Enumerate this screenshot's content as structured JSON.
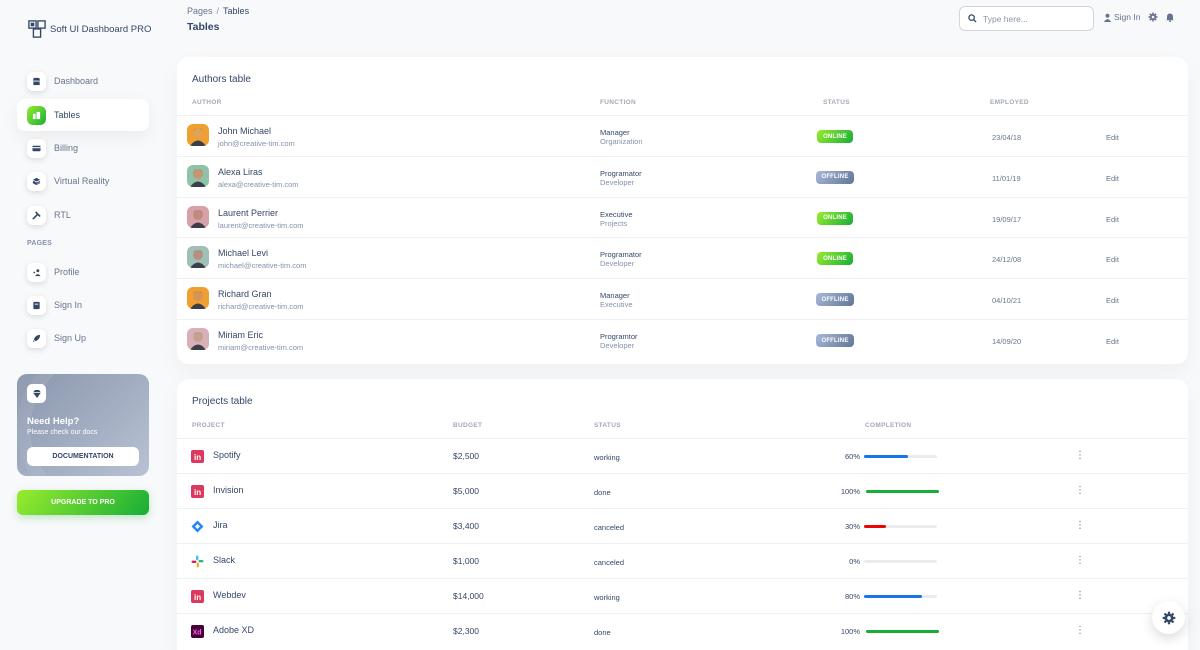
{
  "brand": {
    "name": "Soft UI Dashboard PRO"
  },
  "sidebar": {
    "items": [
      {
        "label": "Dashboard",
        "icon": "shop-icon"
      },
      {
        "label": "Tables",
        "icon": "office-icon"
      },
      {
        "label": "Billing",
        "icon": "credit-card-icon"
      },
      {
        "label": "Virtual Reality",
        "icon": "box-3d-icon"
      },
      {
        "label": "RTL",
        "icon": "settings-tools-icon"
      }
    ],
    "pages_label": "PAGES",
    "pages": [
      {
        "label": "Profile",
        "icon": "customer-support-icon"
      },
      {
        "label": "Sign In",
        "icon": "document-icon"
      },
      {
        "label": "Sign Up",
        "icon": "spaceship-icon"
      }
    ],
    "active_color": "#17ad37"
  },
  "help_card": {
    "title": "Need Help?",
    "subtitle": "Please check our docs",
    "button": "DOCUMENTATION"
  },
  "upgrade": {
    "label": "UPGRADE TO PRO"
  },
  "header": {
    "breadcrumb_root": "Pages",
    "breadcrumb_sep": "/",
    "breadcrumb_current": "Tables",
    "title": "Tables",
    "search_placeholder": "Type here...",
    "signin": "Sign In"
  },
  "authors": {
    "title": "Authors table",
    "headers": {
      "author": "AUTHOR",
      "function": "FUNCTION",
      "status": "STATUS",
      "employed": "EMPLOYED"
    },
    "rows": [
      {
        "name": "John Michael",
        "email": "john@creative-tim.com",
        "role": "Manager",
        "dept": "Organization",
        "status": "ONLINE",
        "employed": "23/04/18",
        "action": "Edit"
      },
      {
        "name": "Alexa Liras",
        "email": "alexa@creative-tim.com",
        "role": "Programator",
        "dept": "Developer",
        "status": "OFFLINE",
        "employed": "11/01/19",
        "action": "Edit"
      },
      {
        "name": "Laurent Perrier",
        "email": "laurent@creative-tim.com",
        "role": "Executive",
        "dept": "Projects",
        "status": "ONLINE",
        "employed": "19/09/17",
        "action": "Edit"
      },
      {
        "name": "Michael Levi",
        "email": "michael@creative-tim.com",
        "role": "Programator",
        "dept": "Developer",
        "status": "ONLINE",
        "employed": "24/12/08",
        "action": "Edit"
      },
      {
        "name": "Richard Gran",
        "email": "richard@creative-tim.com",
        "role": "Manager",
        "dept": "Executive",
        "status": "OFFLINE",
        "employed": "04/10/21",
        "action": "Edit"
      },
      {
        "name": "Miriam Eric",
        "email": "miriam@creative-tim.com",
        "role": "Programtor",
        "dept": "Developer",
        "status": "OFFLINE",
        "employed": "14/09/20",
        "action": "Edit"
      }
    ]
  },
  "projects": {
    "title": "Projects table",
    "headers": {
      "project": "PROJECT",
      "budget": "BUDGET",
      "status": "STATUS",
      "completion": "COMPLETION"
    },
    "rows": [
      {
        "name": "Spotify",
        "icon": "invision-logo-icon",
        "budget": "$2,500",
        "status": "working",
        "percent_label": "60%",
        "percent": 60,
        "color": "#1a73e8"
      },
      {
        "name": "Invision",
        "icon": "invision-logo-icon",
        "budget": "$5,000",
        "status": "done",
        "percent_label": "100%",
        "percent": 100,
        "color": "#17ad37"
      },
      {
        "name": "Jira",
        "icon": "jira-logo-icon",
        "budget": "$3,400",
        "status": "canceled",
        "percent_label": "30%",
        "percent": 30,
        "color": "#ea0606"
      },
      {
        "name": "Slack",
        "icon": "slack-logo-icon",
        "budget": "$1,000",
        "status": "canceled",
        "percent_label": "0%",
        "percent": 0,
        "color": "#1a73e8"
      },
      {
        "name": "Webdev",
        "icon": "invision-logo-icon",
        "budget": "$14,000",
        "status": "working",
        "percent_label": "80%",
        "percent": 80,
        "color": "#1a73e8"
      },
      {
        "name": "Adobe XD",
        "icon": "adobe-xd-logo-icon",
        "budget": "$2,300",
        "status": "done",
        "percent_label": "100%",
        "percent": 100,
        "color": "#17ad37"
      }
    ]
  }
}
